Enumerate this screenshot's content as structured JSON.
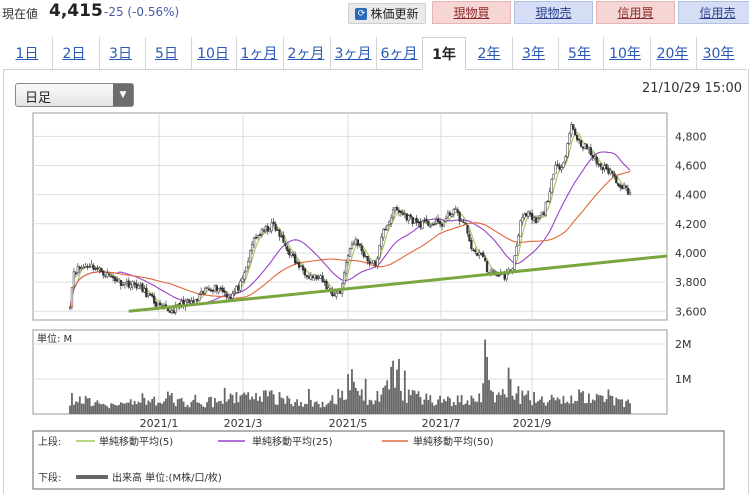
{
  "header": {
    "price_label": "現在値",
    "price": "4,415",
    "change": "-25 (-0.56%)",
    "refresh_label": "株価更新",
    "trade_buttons": [
      "現物買",
      "現物売",
      "信用買",
      "信用売"
    ]
  },
  "tabs": [
    "1日",
    "2日",
    "3日",
    "5日",
    "10日",
    "1ヶ月",
    "2ヶ月",
    "3ヶ月",
    "6ヶ月",
    "1年",
    "2年",
    "3年",
    "5年",
    "10年",
    "20年",
    "30年"
  ],
  "active_tab": "1年",
  "period_select": {
    "value": "日足"
  },
  "timestamp": "21/10/29 15:00",
  "chart_data": {
    "type": "candlestick",
    "price_axis": {
      "ticks": [
        "4,800",
        "4,600",
        "4,400",
        "4,200",
        "4,000",
        "3,800",
        "3,600"
      ],
      "ylim": [
        3540,
        4960
      ]
    },
    "volume_axis": {
      "ticks": [
        "2M",
        "1M"
      ],
      "unit": "単位: M",
      "ylim": [
        0,
        2.4
      ]
    },
    "x_tick_labels": [
      "2021/1",
      "2021/3",
      "2021/5",
      "2021/7",
      "2021/9"
    ],
    "close_path": [
      [
        0,
        3650
      ],
      [
        2,
        3880
      ],
      [
        10,
        3920
      ],
      [
        18,
        3860
      ],
      [
        26,
        3800
      ],
      [
        34,
        3780
      ],
      [
        40,
        3710
      ],
      [
        46,
        3620
      ],
      [
        52,
        3600
      ],
      [
        58,
        3660
      ],
      [
        64,
        3660
      ],
      [
        70,
        3760
      ],
      [
        76,
        3760
      ],
      [
        82,
        3700
      ],
      [
        88,
        3800
      ],
      [
        94,
        4100
      ],
      [
        100,
        4160
      ],
      [
        104,
        4190
      ],
      [
        110,
        4050
      ],
      [
        116,
        3920
      ],
      [
        122,
        3850
      ],
      [
        128,
        3820
      ],
      [
        134,
        3720
      ],
      [
        138,
        3730
      ],
      [
        142,
        4000
      ],
      [
        146,
        4090
      ],
      [
        152,
        3950
      ],
      [
        156,
        3920
      ],
      [
        160,
        4150
      ],
      [
        166,
        4300
      ],
      [
        172,
        4250
      ],
      [
        178,
        4200
      ],
      [
        184,
        4200
      ],
      [
        190,
        4200
      ],
      [
        196,
        4300
      ],
      [
        202,
        4180
      ],
      [
        206,
        4000
      ],
      [
        210,
        4000
      ],
      [
        214,
        3860
      ],
      [
        218,
        3860
      ],
      [
        222,
        3840
      ],
      [
        226,
        3900
      ],
      [
        230,
        4220
      ],
      [
        234,
        4260
      ],
      [
        238,
        4210
      ],
      [
        242,
        4280
      ],
      [
        248,
        4580
      ],
      [
        252,
        4620
      ],
      [
        256,
        4880
      ],
      [
        260,
        4760
      ],
      [
        264,
        4720
      ],
      [
        268,
        4640
      ],
      [
        272,
        4580
      ],
      [
        276,
        4560
      ],
      [
        280,
        4480
      ],
      [
        284,
        4440
      ],
      [
        286,
        4415
      ]
    ],
    "volume_path": [
      [
        0,
        0.4
      ],
      [
        10,
        0.35
      ],
      [
        20,
        0.28
      ],
      [
        30,
        0.3
      ],
      [
        40,
        0.34
      ],
      [
        50,
        0.45
      ],
      [
        60,
        0.28
      ],
      [
        70,
        0.34
      ],
      [
        80,
        0.38
      ],
      [
        90,
        0.5
      ],
      [
        100,
        0.55
      ],
      [
        110,
        0.4
      ],
      [
        120,
        0.35
      ],
      [
        130,
        0.28
      ],
      [
        140,
        0.6
      ],
      [
        145,
        1.2
      ],
      [
        150,
        0.45
      ],
      [
        160,
        0.5
      ],
      [
        166,
        1.35
      ],
      [
        170,
        0.6
      ],
      [
        180,
        0.45
      ],
      [
        190,
        0.4
      ],
      [
        200,
        0.38
      ],
      [
        210,
        0.5
      ],
      [
        212,
        2.3
      ],
      [
        216,
        0.6
      ],
      [
        220,
        0.45
      ],
      [
        226,
        0.8
      ],
      [
        230,
        0.5
      ],
      [
        240,
        0.42
      ],
      [
        250,
        0.38
      ],
      [
        260,
        0.5
      ],
      [
        270,
        0.42
      ],
      [
        280,
        0.36
      ],
      [
        286,
        0.3
      ]
    ],
    "trendline": {
      "from": [
        30,
        3600
      ],
      "to": [
        320,
        4000
      ]
    },
    "legend": [
      {
        "label": "上段:",
        "series": [
          {
            "name": "単純移動平均(5)",
            "color": "#9ec85a"
          },
          {
            "name": "単純移動平均(25)",
            "color": "#9a42c8"
          },
          {
            "name": "単純移動平均(50)",
            "color": "#e0683c"
          }
        ]
      },
      {
        "label": "下段:",
        "series": [
          {
            "name": "出来高 単位:(M株/口/枚)",
            "color": "#666666"
          }
        ]
      }
    ]
  }
}
